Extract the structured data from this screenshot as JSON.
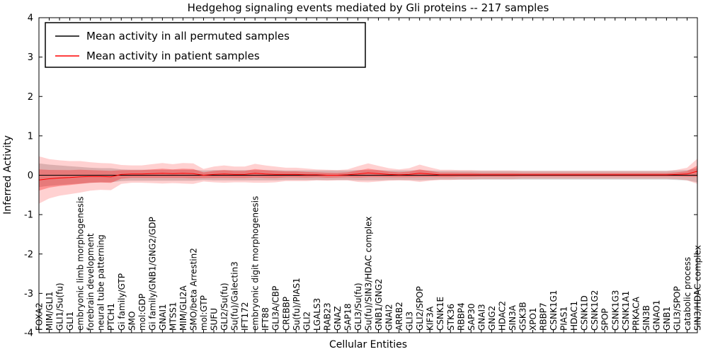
{
  "figure": {
    "title": "Hedgehog signaling events mediated by Gli proteins -- 217 samples",
    "xlabel": "Cellular Entities",
    "ylabel": "Inferred Activity"
  },
  "legend": {
    "items": [
      {
        "label": "Mean activity in all permuted samples",
        "color": "#000000"
      },
      {
        "label": "Mean activity in patient samples",
        "color": "#ff0000"
      }
    ]
  },
  "chart_data": {
    "type": "line",
    "title": "Hedgehog signaling events mediated by Gli proteins -- 217 samples",
    "xlabel": "Cellular Entities",
    "ylabel": "Inferred Activity",
    "ylim": [
      -4,
      4
    ],
    "yticks": [
      -4,
      -3,
      -2,
      -1,
      0,
      1,
      2,
      3,
      4
    ],
    "grid": false,
    "legend_position": "upper left",
    "categories": [
      "FOXA2",
      "MIM/GLI1",
      "GLI1/Su(fu)",
      "GLI1",
      "embryonic limb morphogenesis",
      "forebrain development",
      "neural tube patterning",
      "PTCH1",
      "Gi family/GTP",
      "SMO",
      "mol:GDP",
      "Gi family/GNB1/GNG2/GDP",
      "GNAI1",
      "MTSS1",
      "MIM/GLI2A",
      "SMO/beta Arrestin2",
      "mol:GTP",
      "SUFU",
      "GLI2/Su(fu)",
      "Su(fu)/Galectin3",
      "IFT172",
      "embryonic digit morphogenesis",
      "IFT88",
      "GLI3A/CBP",
      "CREBBP",
      "Su(fu)/PIAS1",
      "GLI2",
      "LGALS3",
      "RAB23",
      "GNAZ",
      "SAP18",
      "GLI3/Su(fu)",
      "Su(fu)/SIN3/HDAC complex",
      "GNB1/GNG2",
      "GNAI2",
      "ARRB2",
      "GLI3",
      "GLI2/SPOP",
      "KIF3A",
      "CSNK1E",
      "STK36",
      "RBBP4",
      "SAP30",
      "GNAI3",
      "GNG2",
      "HDAC2",
      "SIN3A",
      "GSK3B",
      "XPO1",
      "RBBP7",
      "CSNK1G1",
      "PIAS1",
      "HDAC1",
      "CSNK1D",
      "CSNK1G2",
      "SPOP",
      "CSNK1G3",
      "CSNK1A1",
      "PRKACA",
      "SIN3B",
      "GNAO1",
      "GNB1",
      "GLI3/SPOP",
      "catabolic process",
      "SIN3/HDAC complex"
    ],
    "series": [
      {
        "name": "Mean activity in all permuted samples",
        "color": "#000000",
        "band_color": "rgba(0,0,0,0.16)",
        "values": [
          0,
          0,
          0,
          0,
          0,
          0,
          0,
          0,
          0,
          0,
          0,
          0,
          0,
          0,
          0,
          0,
          0,
          0,
          0,
          0,
          0,
          0,
          0,
          0,
          0,
          0,
          0,
          0,
          0,
          0,
          0,
          0,
          0,
          0,
          0,
          0,
          0,
          0,
          0,
          0,
          0,
          0,
          0,
          0,
          0,
          0,
          0,
          0,
          0,
          0,
          0,
          0,
          0,
          0,
          0,
          0,
          0,
          0,
          0,
          0,
          0,
          0,
          0,
          0,
          0
        ],
        "band_halfwidth": [
          0.3,
          0.27,
          0.25,
          0.23,
          0.21,
          0.19,
          0.18,
          0.18,
          0.15,
          0.14,
          0.14,
          0.14,
          0.14,
          0.14,
          0.14,
          0.14,
          0.12,
          0.13,
          0.13,
          0.13,
          0.13,
          0.13,
          0.13,
          0.13,
          0.12,
          0.12,
          0.12,
          0.12,
          0.12,
          0.12,
          0.12,
          0.13,
          0.13,
          0.13,
          0.12,
          0.12,
          0.12,
          0.13,
          0.12,
          0.11,
          0.11,
          0.11,
          0.11,
          0.11,
          0.11,
          0.11,
          0.11,
          0.11,
          0.11,
          0.11,
          0.11,
          0.11,
          0.11,
          0.11,
          0.11,
          0.11,
          0.11,
          0.11,
          0.11,
          0.11,
          0.11,
          0.11,
          0.12,
          0.13,
          0.18
        ]
      },
      {
        "name": "Mean activity in patient samples",
        "color": "#ff0000",
        "band_color": "rgba(255,0,0,0.18)",
        "values": [
          -0.12,
          -0.09,
          -0.07,
          -0.06,
          -0.04,
          -0.03,
          -0.03,
          -0.04,
          0.02,
          0.03,
          0.03,
          0.04,
          0.05,
          0.04,
          0.05,
          0.04,
          0.0,
          0.02,
          0.03,
          0.02,
          0.02,
          0.05,
          0.03,
          0.02,
          0.02,
          0.02,
          0.01,
          0.01,
          0.0,
          0.0,
          0.01,
          0.03,
          0.06,
          0.04,
          0.02,
          0.01,
          0.02,
          0.05,
          0.03,
          0.01,
          0.01,
          0.01,
          0.01,
          0.01,
          0.01,
          0.01,
          0.01,
          0.01,
          0.01,
          0.01,
          0.01,
          0.01,
          0.01,
          0.01,
          0.01,
          0.01,
          0.01,
          0.01,
          0.01,
          0.01,
          0.01,
          0.01,
          0.02,
          0.03,
          0.1
        ],
        "band_halfwidth": [
          0.6,
          0.5,
          0.45,
          0.42,
          0.4,
          0.36,
          0.34,
          0.34,
          0.24,
          0.22,
          0.22,
          0.24,
          0.26,
          0.24,
          0.26,
          0.26,
          0.16,
          0.2,
          0.22,
          0.2,
          0.2,
          0.24,
          0.22,
          0.2,
          0.17,
          0.17,
          0.16,
          0.14,
          0.14,
          0.13,
          0.14,
          0.2,
          0.24,
          0.2,
          0.16,
          0.14,
          0.16,
          0.22,
          0.17,
          0.13,
          0.13,
          0.12,
          0.12,
          0.11,
          0.11,
          0.11,
          0.11,
          0.1,
          0.1,
          0.1,
          0.1,
          0.1,
          0.1,
          0.1,
          0.1,
          0.1,
          0.1,
          0.1,
          0.1,
          0.1,
          0.1,
          0.1,
          0.12,
          0.16,
          0.32
        ]
      }
    ]
  }
}
